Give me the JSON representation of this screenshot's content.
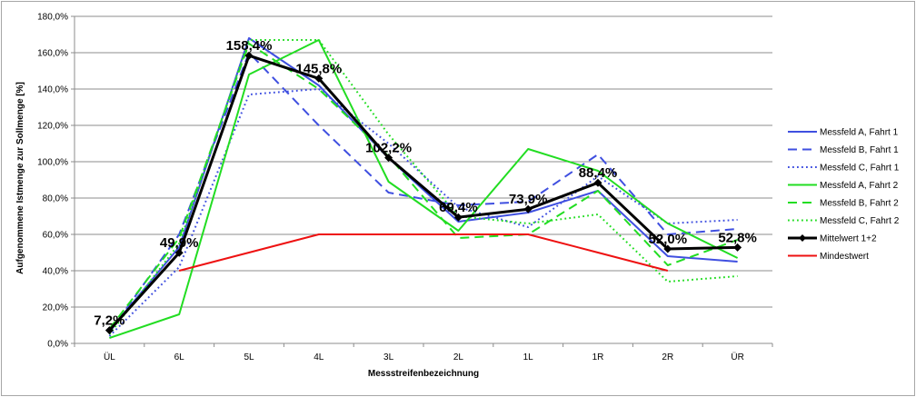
{
  "chart_data": {
    "type": "line",
    "title": "",
    "xlabel": "Messstreifenbezeichnung",
    "ylabel": "Aufgenommene Istmenge zur Sollmenge [%]",
    "categories": [
      "ÜL",
      "6L",
      "5L",
      "4L",
      "3L",
      "2L",
      "1L",
      "1R",
      "2R",
      "ÜR"
    ],
    "ylim": [
      0,
      180
    ],
    "yticks": [
      "0,0%",
      "20,0%",
      "40,0%",
      "60,0%",
      "80,0%",
      "100,0%",
      "120,0%",
      "140,0%",
      "160,0%",
      "180,0%"
    ],
    "grid": true,
    "legend_position": "right",
    "series": [
      {
        "name": "Messfeld A, Fahrt 1",
        "color": "#3f4fe0",
        "dash": "solid",
        "width": 2,
        "values": [
          7,
          53,
          168,
          142,
          102,
          67,
          72,
          84,
          48,
          45
        ]
      },
      {
        "name": "Messfeld B, Fahrt 1",
        "color": "#3f4fe0",
        "dash": "dashed",
        "width": 2,
        "values": [
          6,
          60,
          160,
          120,
          83,
          76,
          78,
          104,
          60,
          63
        ]
      },
      {
        "name": "Messfeld C, Fahrt 1",
        "color": "#3f4fe0",
        "dash": "dotted",
        "width": 2,
        "values": [
          4,
          42,
          137,
          140,
          110,
          75,
          64,
          92,
          66,
          68
        ]
      },
      {
        "name": "Messfeld A, Fahrt 2",
        "color": "#22dd22",
        "dash": "solid",
        "width": 2,
        "values": [
          3,
          16,
          148,
          167,
          89,
          62,
          107,
          95,
          66,
          47
        ]
      },
      {
        "name": "Messfeld B, Fahrt 2",
        "color": "#22dd22",
        "dash": "dashed",
        "width": 2,
        "values": [
          8,
          58,
          165,
          140,
          103,
          58,
          60,
          84,
          43,
          57
        ]
      },
      {
        "name": "Messfeld C, Fahrt 2",
        "color": "#22dd22",
        "dash": "dotted",
        "width": 2,
        "values": [
          5,
          55,
          167,
          167,
          115,
          70,
          66,
          71,
          34,
          37
        ]
      },
      {
        "name": "Mittelwert 1+2",
        "color": "#000000",
        "dash": "solid",
        "width": 3,
        "marker": "diamond",
        "values": [
          7.2,
          49.9,
          158.4,
          145.8,
          102.2,
          69.4,
          73.9,
          88.4,
          52.0,
          52.8
        ],
        "labels": [
          "7,2%",
          "49,9%",
          "158,4%",
          "145,8%",
          "102,2%",
          "69,4%",
          "73,9%",
          "88,4%",
          "52,0%",
          "52,8%"
        ]
      },
      {
        "name": "Mindestwert",
        "color": "#ee1111",
        "dash": "solid",
        "width": 2,
        "values": [
          null,
          40,
          50,
          60,
          60,
          60,
          60,
          50,
          40,
          null
        ]
      }
    ]
  }
}
